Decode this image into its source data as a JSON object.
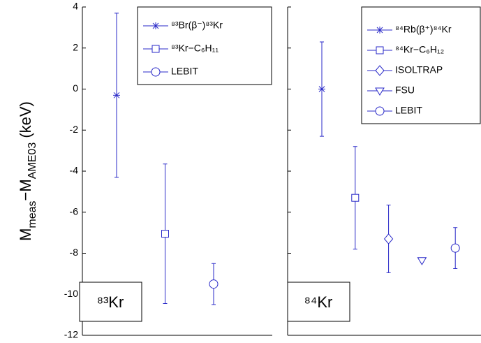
{
  "chart_data": [
    {
      "type": "errorbar",
      "panel_label": "⁸³Kr",
      "ylabel": [
        "M",
        "meas",
        "−M",
        "AME03",
        " (keV)"
      ],
      "ylim": [
        -12,
        4
      ],
      "yticks": [
        -12,
        -10,
        -8,
        -6,
        -4,
        -2,
        0,
        2,
        4
      ],
      "ytick_labels": true,
      "series": [
        {
          "name": "⁸³Br(β⁻)⁸³Kr",
          "marker": "star",
          "color": "#2a2ac8",
          "values": [
            -0.3
          ],
          "errors": [
            4.0
          ]
        },
        {
          "name": "⁸³Kr−C₆H₁₁",
          "marker": "square",
          "color": "#2a2ac8",
          "values": [
            -7.05
          ],
          "errors": [
            3.4
          ]
        },
        {
          "name": "LEBIT",
          "marker": "circle",
          "color": "#2a2ac8",
          "values": [
            -9.5
          ],
          "errors": [
            1.0
          ]
        }
      ]
    },
    {
      "type": "errorbar",
      "panel_label": "⁸⁴Kr",
      "ylim": [
        -12,
        4
      ],
      "yticks": [
        -12,
        -10,
        -8,
        -6,
        -4,
        -2,
        0,
        2,
        4
      ],
      "ytick_labels": false,
      "series": [
        {
          "name": "⁸⁴Rb(β⁺)⁸⁴Kr",
          "marker": "star",
          "color": "#2a2ac8",
          "values": [
            0
          ],
          "errors": [
            2.3
          ]
        },
        {
          "name": "⁸⁴Kr−C₆H₁₂",
          "marker": "square",
          "color": "#2a2ac8",
          "values": [
            -5.3
          ],
          "errors": [
            2.5
          ]
        },
        {
          "name": "ISOLTRAP",
          "marker": "diamond",
          "color": "#2a2ac8",
          "values": [
            -7.3
          ],
          "errors": [
            1.65
          ]
        },
        {
          "name": "FSU",
          "marker": "triangle-down",
          "color": "#2a2ac8",
          "values": [
            -8.35
          ],
          "errors": [
            0
          ]
        },
        {
          "name": "LEBIT",
          "marker": "circle",
          "color": "#2a2ac8",
          "values": [
            -7.75
          ],
          "errors": [
            1.0
          ]
        }
      ]
    }
  ]
}
